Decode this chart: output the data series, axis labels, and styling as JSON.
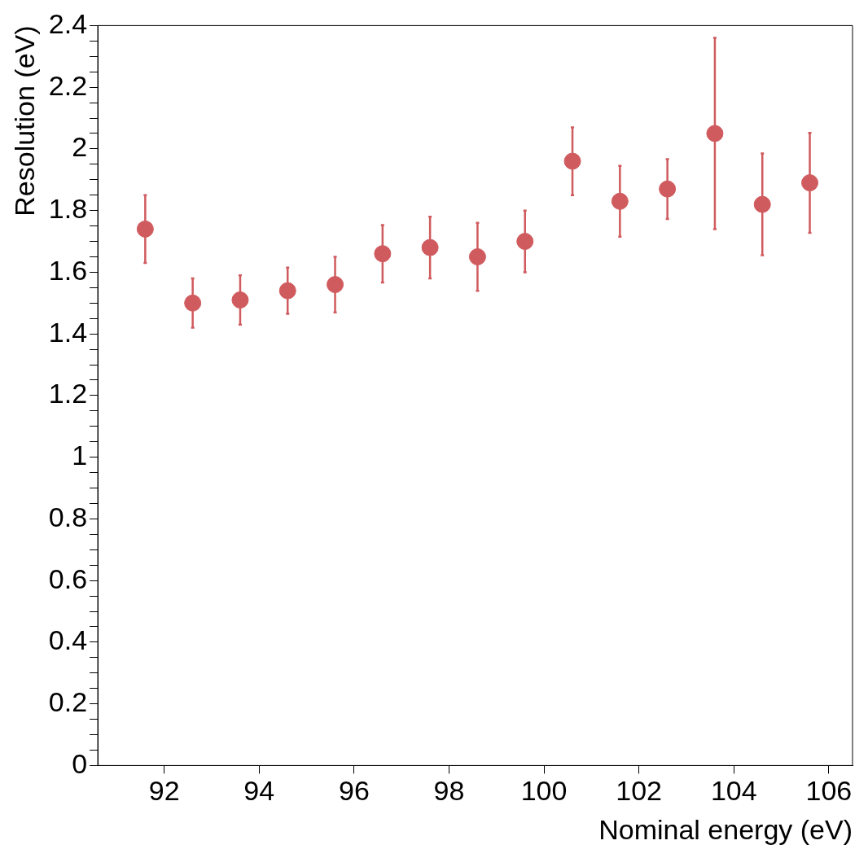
{
  "chart_data": {
    "type": "scatter",
    "xlabel": "Nominal energy (eV)",
    "ylabel": "Resolution (eV)",
    "x": [
      91.6,
      92.6,
      93.6,
      94.6,
      95.6,
      96.6,
      97.6,
      98.6,
      99.6,
      100.6,
      101.6,
      102.6,
      103.6,
      104.6,
      105.6
    ],
    "series": [
      {
        "color": "#d05b5e",
        "values": [
          1.74,
          1.5,
          1.51,
          1.54,
          1.56,
          1.66,
          1.68,
          1.65,
          1.7,
          1.96,
          1.83,
          1.87,
          2.05,
          1.82,
          1.89
        ],
        "errors": [
          0.11,
          0.08,
          0.08,
          0.075,
          0.09,
          0.093,
          0.1,
          0.11,
          0.1,
          0.11,
          0.115,
          0.097,
          0.31,
          0.165,
          0.162
        ]
      }
    ],
    "xlim": [
      90.6,
      106.5
    ],
    "ylim": [
      0,
      2.4
    ],
    "xticks": [
      92,
      94,
      96,
      98,
      100,
      102,
      104,
      106
    ],
    "yticks": [
      0,
      {
        "value": 0.05,
        "label": null
      },
      {
        "value": 0.1,
        "label": null
      },
      {
        "value": 0.15,
        "label": null
      },
      0.2,
      {
        "value": 0.25,
        "label": null
      },
      {
        "value": 0.3,
        "label": null
      },
      {
        "value": 0.35,
        "label": null
      },
      0.4,
      {
        "value": 0.45,
        "label": null
      },
      {
        "value": 0.5,
        "label": null
      },
      {
        "value": 0.55,
        "label": null
      },
      0.6,
      {
        "value": 0.65,
        "label": null
      },
      {
        "value": 0.7,
        "label": null
      },
      {
        "value": 0.75,
        "label": null
      },
      0.8,
      {
        "value": 0.85,
        "label": null
      },
      {
        "value": 0.9,
        "label": null
      },
      {
        "value": 0.95,
        "label": null
      },
      1,
      {
        "value": 1.05,
        "label": null
      },
      {
        "value": 1.1,
        "label": null
      },
      {
        "value": 1.15,
        "label": null
      },
      1.2,
      {
        "value": 1.25,
        "label": null
      },
      {
        "value": 1.3,
        "label": null
      },
      {
        "value": 1.35,
        "label": null
      },
      1.4,
      {
        "value": 1.45,
        "label": null
      },
      {
        "value": 1.5,
        "label": null
      },
      {
        "value": 1.55,
        "label": null
      },
      1.6,
      {
        "value": 1.65,
        "label": null
      },
      {
        "value": 1.7,
        "label": null
      },
      {
        "value": 1.75,
        "label": null
      },
      1.8,
      {
        "value": 1.85,
        "label": null
      },
      {
        "value": 1.9,
        "label": null
      },
      {
        "value": 1.95,
        "label": null
      },
      2,
      {
        "value": 2.05,
        "label": null
      },
      {
        "value": 2.1,
        "label": null
      },
      {
        "value": 2.15,
        "label": null
      },
      2.2,
      {
        "value": 2.25,
        "label": null
      },
      {
        "value": 2.3,
        "label": null
      },
      {
        "value": 2.35,
        "label": null
      },
      2.4
    ],
    "grid": false,
    "legend": false,
    "marker": "circle"
  }
}
